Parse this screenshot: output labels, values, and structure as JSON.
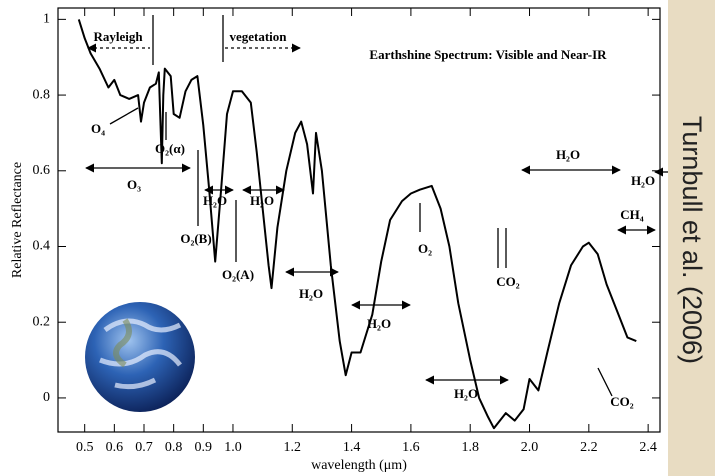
{
  "chart_data": {
    "type": "line",
    "title": "Earthshine Spectrum: Visible and Near-IR",
    "x_label": "wavelength (μm)",
    "y_label": "Relative Reflectance",
    "credit": "Turnbull et al. (2006)",
    "color": "#000000",
    "xlim": [
      0.41,
      2.44
    ],
    "ylim": [
      -0.09,
      1.03
    ],
    "xticks": [
      0.5,
      0.6,
      0.7,
      0.8,
      0.9,
      {
        "value": 1,
        "label": "1.0"
      },
      1.2,
      1.4,
      1.6,
      1.8,
      {
        "value": 2,
        "label": "2.0"
      },
      2.2,
      2.4
    ],
    "yticks": [
      0,
      0.2,
      0.4,
      0.6,
      0.8,
      1
    ],
    "annotations": [
      "Rayleigh",
      "vegetation",
      "O₄",
      "O₂(α)",
      "O₃",
      "H₂O",
      "H₂O",
      "O₂(B)",
      "O₂(A)",
      "H₂O",
      "H₂O",
      "O₂",
      "CO₂",
      "H₂O",
      "H₂O",
      "CH₄",
      "H₂O",
      "CO₂"
    ],
    "x": [
      0.48,
      0.5,
      0.52,
      0.55,
      0.58,
      0.6,
      0.62,
      0.65,
      0.68,
      0.69,
      0.7,
      0.72,
      0.74,
      0.75,
      0.76,
      0.765,
      0.77,
      0.79,
      0.8,
      0.82,
      0.84,
      0.86,
      0.88,
      0.9,
      0.92,
      0.94,
      0.96,
      0.98,
      1.0,
      1.03,
      1.06,
      1.08,
      1.12,
      1.13,
      1.15,
      1.18,
      1.21,
      1.23,
      1.25,
      1.27,
      1.28,
      1.3,
      1.33,
      1.36,
      1.38,
      1.4,
      1.43,
      1.47,
      1.5,
      1.53,
      1.57,
      1.6,
      1.63,
      1.67,
      1.7,
      1.73,
      1.76,
      1.8,
      1.83,
      1.86,
      1.88,
      1.92,
      1.95,
      1.98,
      2.0,
      2.03,
      2.06,
      2.1,
      2.14,
      2.18,
      2.2,
      2.23,
      2.26,
      2.3,
      2.33,
      2.36
    ],
    "values": [
      1.0,
      0.95,
      0.91,
      0.87,
      0.82,
      0.84,
      0.8,
      0.79,
      0.8,
      0.73,
      0.78,
      0.82,
      0.83,
      0.86,
      0.62,
      0.8,
      0.87,
      0.85,
      0.75,
      0.74,
      0.81,
      0.84,
      0.85,
      0.72,
      0.55,
      0.36,
      0.55,
      0.75,
      0.81,
      0.81,
      0.78,
      0.65,
      0.35,
      0.29,
      0.45,
      0.6,
      0.7,
      0.73,
      0.67,
      0.54,
      0.7,
      0.6,
      0.35,
      0.15,
      0.06,
      0.12,
      0.12,
      0.22,
      0.36,
      0.47,
      0.52,
      0.54,
      0.55,
      0.56,
      0.5,
      0.4,
      0.25,
      0.1,
      0.0,
      -0.05,
      -0.08,
      -0.04,
      -0.06,
      -0.03,
      0.05,
      0.02,
      0.12,
      0.25,
      0.35,
      0.4,
      0.41,
      0.38,
      0.3,
      0.22,
      0.16,
      0.15
    ]
  }
}
